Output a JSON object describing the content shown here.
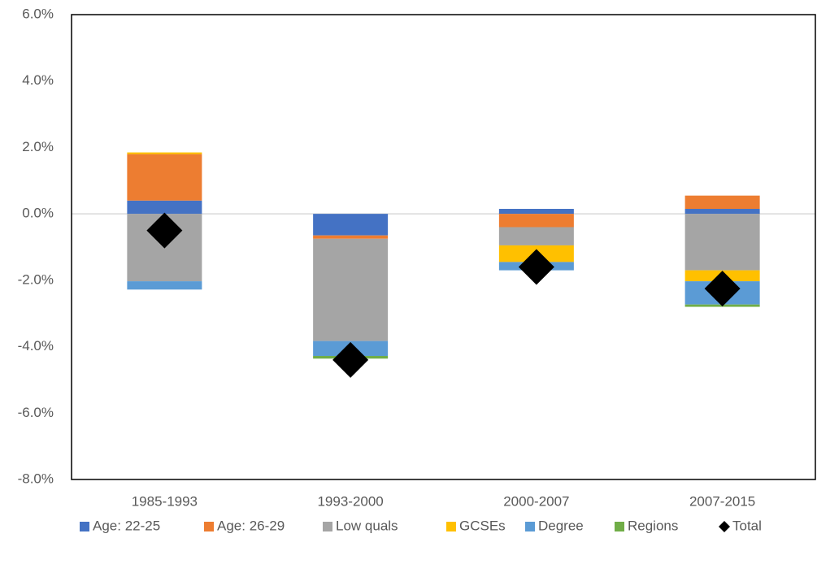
{
  "chart_data": {
    "type": "bar",
    "stacked": true,
    "categories": [
      "1985-1993",
      "1993-2000",
      "2000-2007",
      "2007-2015"
    ],
    "series": [
      {
        "name": "Age: 22-25",
        "color": "#4472c4",
        "values": [
          0.4,
          -0.65,
          0.15,
          0.15
        ]
      },
      {
        "name": "Age: 26-29",
        "color": "#ed7d31",
        "values": [
          1.4,
          -0.1,
          -0.4,
          0.4
        ]
      },
      {
        "name": "Low quals",
        "color": "#a5a5a5",
        "values": [
          -2.03,
          -3.08,
          -0.55,
          -1.7
        ]
      },
      {
        "name": "GCSEs",
        "color": "#ffc000",
        "values": [
          0.05,
          0,
          -0.5,
          -0.33
        ]
      },
      {
        "name": "Degree",
        "color": "#5b9bd5",
        "values": [
          -0.25,
          -0.45,
          -0.25,
          -0.7
        ]
      },
      {
        "name": "Regions",
        "color": "#70ad47",
        "values": [
          0,
          -0.08,
          0,
          -0.07
        ]
      },
      {
        "name": "Total",
        "type": "scatter",
        "color": "#000000",
        "values": [
          -0.5,
          -4.4,
          -1.6,
          -2.25
        ]
      }
    ],
    "ylim": [
      -8,
      6
    ],
    "yticks": [
      {
        "value": -8,
        "label": "-8.0%"
      },
      {
        "value": -6,
        "label": "-6.0%"
      },
      {
        "value": -4,
        "label": "-4.0%"
      },
      {
        "value": -2,
        "label": "-2.0%"
      },
      {
        "value": 0,
        "label": "0.0%"
      },
      {
        "value": 2,
        "label": "2.0%"
      },
      {
        "value": 4,
        "label": "4.0%"
      },
      {
        "value": 6,
        "label": "6.0%"
      }
    ],
    "legend": "bottom"
  }
}
